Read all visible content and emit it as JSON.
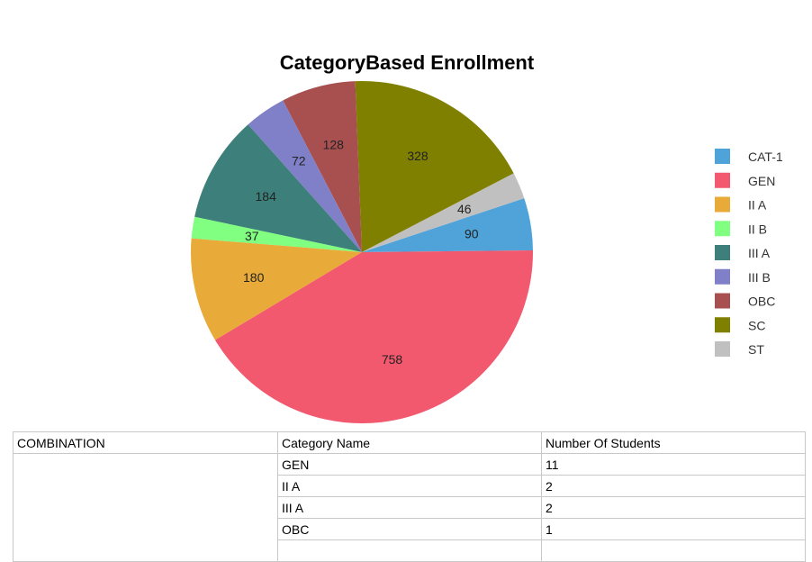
{
  "chart_data": {
    "type": "pie",
    "title": "CategoryBased Enrollment",
    "legend_position": "right",
    "slices": [
      {
        "label": "CAT-1",
        "value": 90,
        "color": "#4fa3d9"
      },
      {
        "label": "ST",
        "value": 46,
        "color": "#c0c0c0"
      },
      {
        "label": "SC",
        "value": 328,
        "color": "#808000"
      },
      {
        "label": "OBC",
        "value": 128,
        "color": "#a85050"
      },
      {
        "label": "III B",
        "value": 72,
        "color": "#8080c8"
      },
      {
        "label": "III A",
        "value": 184,
        "color": "#3d7f7a"
      },
      {
        "label": "II B",
        "value": 37,
        "color": "#80ff80"
      },
      {
        "label": "II A",
        "value": 180,
        "color": "#e8ab3a"
      },
      {
        "label": "GEN",
        "value": 758,
        "color": "#f2586e"
      }
    ],
    "legend": [
      {
        "label": "CAT-1",
        "color": "#4fa3d9"
      },
      {
        "label": "GEN",
        "color": "#f2586e"
      },
      {
        "label": "II A",
        "color": "#e8ab3a"
      },
      {
        "label": "II B",
        "color": "#80ff80"
      },
      {
        "label": "III A",
        "color": "#3d7f7a"
      },
      {
        "label": "III B",
        "color": "#8080c8"
      },
      {
        "label": "OBC",
        "color": "#a85050"
      },
      {
        "label": "SC",
        "color": "#808000"
      },
      {
        "label": "ST",
        "color": "#c0c0c0"
      }
    ]
  },
  "table": {
    "headers": [
      "COMBINATION",
      "Category Name",
      "Number Of Students"
    ],
    "rows": [
      {
        "category": "GEN",
        "count": "11"
      },
      {
        "category": "II A",
        "count": "2"
      },
      {
        "category": "III A",
        "count": "2"
      },
      {
        "category": "OBC",
        "count": "1"
      }
    ]
  }
}
